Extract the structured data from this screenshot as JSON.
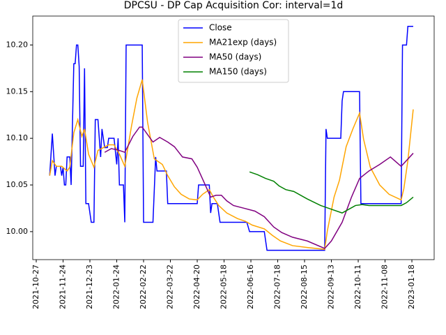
{
  "chart_data": {
    "type": "line",
    "title": "DPCSU - DP Cap Acquisition Cor: interval=1d",
    "xlim": [
      -2.6,
      296.6
    ],
    "xticks": [
      {
        "value": 0,
        "label": "2021-10-27"
      },
      {
        "value": 20,
        "label": "2021-11-24"
      },
      {
        "value": 40,
        "label": "2021-12-23"
      },
      {
        "value": 60,
        "label": "2022-01-24"
      },
      {
        "value": 80,
        "label": "2022-02-22"
      },
      {
        "value": 100,
        "label": "2022-03-22"
      },
      {
        "value": 120,
        "label": "2022-04-20"
      },
      {
        "value": 140,
        "label": "2022-05-18"
      },
      {
        "value": 160,
        "label": "2022-06-16"
      },
      {
        "value": 180,
        "label": "2022-07-18"
      },
      {
        "value": 200,
        "label": "2022-08-15"
      },
      {
        "value": 220,
        "label": "2022-09-13"
      },
      {
        "value": 240,
        "label": "2022-10-11"
      },
      {
        "value": 260,
        "label": "2022-11-08"
      },
      {
        "value": 280,
        "label": "2023-01-18"
      }
    ],
    "ylim": [
      9.97,
      10.231
    ],
    "yticks": [
      {
        "value": 10.0,
        "label": "10.00"
      },
      {
        "value": 10.05,
        "label": "10.05"
      },
      {
        "value": 10.1,
        "label": "10.10"
      },
      {
        "value": 10.15,
        "label": "10.15"
      },
      {
        "value": 10.2,
        "label": "10.20"
      }
    ],
    "legend": "upper center",
    "series": [
      {
        "name": "Close",
        "color": "#0000ff",
        "x": [
          10,
          12,
          14,
          15,
          18,
          19,
          20,
          21,
          22,
          23,
          25,
          26,
          28,
          29,
          30,
          31,
          32,
          33,
          35,
          36,
          37,
          39,
          41,
          43,
          44,
          46,
          48,
          49,
          51,
          53,
          54,
          58,
          60,
          61,
          62,
          65,
          66,
          67,
          79,
          80,
          87,
          89,
          90,
          97,
          98,
          120,
          121,
          129,
          130,
          131,
          135,
          137,
          157,
          159,
          170,
          172,
          215,
          216,
          217,
          227,
          228,
          229,
          241,
          242,
          272,
          273,
          276,
          277,
          281
        ],
        "values": [
          10.06,
          10.105,
          10.06,
          10.07,
          10.07,
          10.06,
          10.069,
          10.05,
          10.05,
          10.08,
          10.08,
          10.05,
          10.18,
          10.18,
          10.2,
          10.2,
          10.177,
          10.07,
          10.07,
          10.175,
          10.03,
          10.03,
          10.01,
          10.01,
          10.12,
          10.12,
          10.08,
          10.11,
          10.09,
          10.09,
          10.1,
          10.1,
          10.072,
          10.1,
          10.05,
          10.05,
          10.01,
          10.2,
          10.2,
          10.01,
          10.01,
          10.08,
          10.065,
          10.065,
          10.03,
          10.03,
          10.05,
          10.05,
          10.02,
          10.03,
          10.03,
          10.01,
          10.01,
          10.0,
          10.0,
          9.98,
          9.98,
          10.11,
          10.1,
          10.1,
          10.14,
          10.15,
          10.15,
          10.03,
          10.03,
          10.2,
          10.2,
          10.22,
          10.22
        ]
      },
      {
        "name": "MA21exp (days)",
        "color": "#ffa500",
        "x": [
          10,
          12,
          15,
          19,
          23,
          25,
          28,
          31,
          34,
          36,
          39,
          43,
          46,
          50,
          54,
          58,
          62,
          66,
          71,
          75,
          79,
          83,
          88,
          94,
          98,
          103,
          108,
          114,
          120,
          124,
          129,
          132,
          136,
          142,
          150,
          156,
          161,
          170,
          176,
          182,
          191,
          202,
          215,
          217,
          222,
          226,
          231,
          236,
          241,
          244,
          249,
          256,
          263,
          272,
          274,
          277,
          281
        ],
        "values": [
          10.06,
          10.076,
          10.07,
          10.07,
          10.065,
          10.069,
          10.106,
          10.12,
          10.102,
          10.11,
          10.083,
          10.069,
          10.087,
          10.09,
          10.093,
          10.093,
          10.083,
          10.07,
          10.113,
          10.143,
          10.163,
          10.117,
          10.078,
          10.072,
          10.06,
          10.048,
          10.04,
          10.035,
          10.034,
          10.04,
          10.045,
          10.037,
          10.028,
          10.02,
          10.014,
          10.011,
          10.007,
          10.003,
          9.996,
          9.99,
          9.985,
          9.983,
          9.981,
          10.001,
          10.037,
          10.055,
          10.091,
          10.11,
          10.127,
          10.099,
          10.069,
          10.05,
          10.04,
          10.034,
          10.046,
          10.076,
          10.131
        ]
      },
      {
        "name": "MA50 (days)",
        "color": "#800080",
        "x": [
          51,
          56,
          62,
          66,
          72,
          77,
          79,
          83,
          87,
          92,
          98,
          103,
          109,
          116,
          120,
          126,
          130,
          134,
          138,
          142,
          147,
          155,
          163,
          170,
          177,
          183,
          191,
          202,
          215,
          220,
          228,
          235,
          241,
          248,
          256,
          264,
          272,
          281
        ],
        "values": [
          10.085,
          10.089,
          10.087,
          10.085,
          10.102,
          10.112,
          10.112,
          10.104,
          10.096,
          10.101,
          10.096,
          10.091,
          10.08,
          10.078,
          10.069,
          10.05,
          10.037,
          10.039,
          10.039,
          10.033,
          10.028,
          10.025,
          10.022,
          10.016,
          10.005,
          9.999,
          9.994,
          9.99,
          9.982,
          9.99,
          10.01,
          10.037,
          10.057,
          10.065,
          10.072,
          10.08,
          10.07,
          10.084
        ]
      },
      {
        "name": "MA150 (days)",
        "color": "#008000",
        "x": [
          159,
          165,
          171,
          177,
          181,
          186,
          192,
          202,
          212,
          220,
          228,
          233,
          238,
          243,
          248,
          272,
          276,
          281
        ],
        "values": [
          10.064,
          10.061,
          10.057,
          10.054,
          10.049,
          10.045,
          10.043,
          10.035,
          10.028,
          10.024,
          10.02,
          10.024,
          10.028,
          10.029,
          10.028,
          10.028,
          10.031,
          10.037
        ]
      }
    ]
  }
}
